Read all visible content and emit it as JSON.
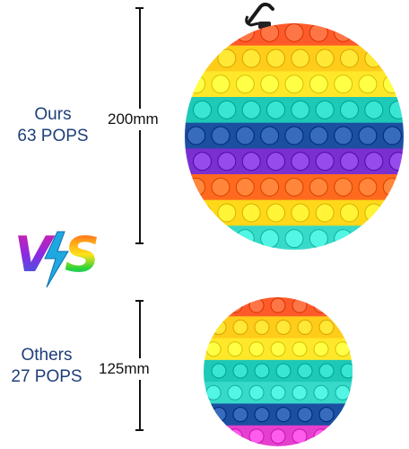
{
  "top": {
    "label_line1": "Ours",
    "label_line2": "63 POPS",
    "dimension": "200mm"
  },
  "versus": {
    "text_v": "V",
    "text_s": "S"
  },
  "bottom": {
    "label_line1": "Others",
    "label_line2": "27 POPS",
    "dimension": "125mm"
  },
  "colors": {
    "label_text": "#1e3f7a",
    "rainbow": [
      "#ff5a2a",
      "#ffcc1a",
      "#ffe82a",
      "#1dc9b7",
      "#1b4fa0",
      "#7a2fd0",
      "#ff6a1f",
      "#ffd81a",
      "#37d9c8"
    ]
  },
  "icons": {
    "carabiner": "carabiner-icon",
    "lightning": "lightning-bolt-icon"
  }
}
